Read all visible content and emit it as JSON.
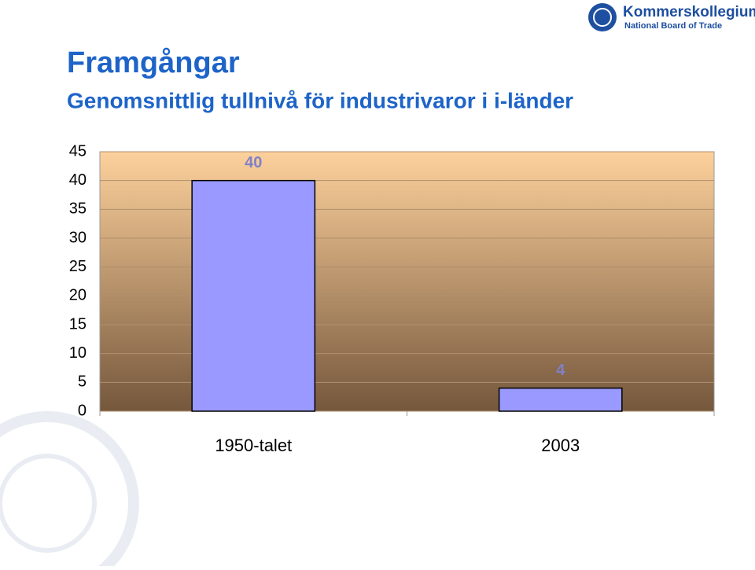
{
  "chart_data": {
    "type": "bar",
    "title": "Framgångar",
    "subtitle": "Genomsnittlig tullnivå för industrivaror i i-länder",
    "categories": [
      "1950-talet",
      "2003"
    ],
    "values": [
      40,
      4
    ],
    "color": "#9999ff",
    "ylim": [
      0,
      45
    ],
    "yticks": [
      0,
      5,
      10,
      15,
      20,
      25,
      30,
      35,
      40,
      45
    ],
    "grid": true
  },
  "logo": {
    "name": "Kommerskollegium",
    "subtitle": "National Board of Trade"
  }
}
